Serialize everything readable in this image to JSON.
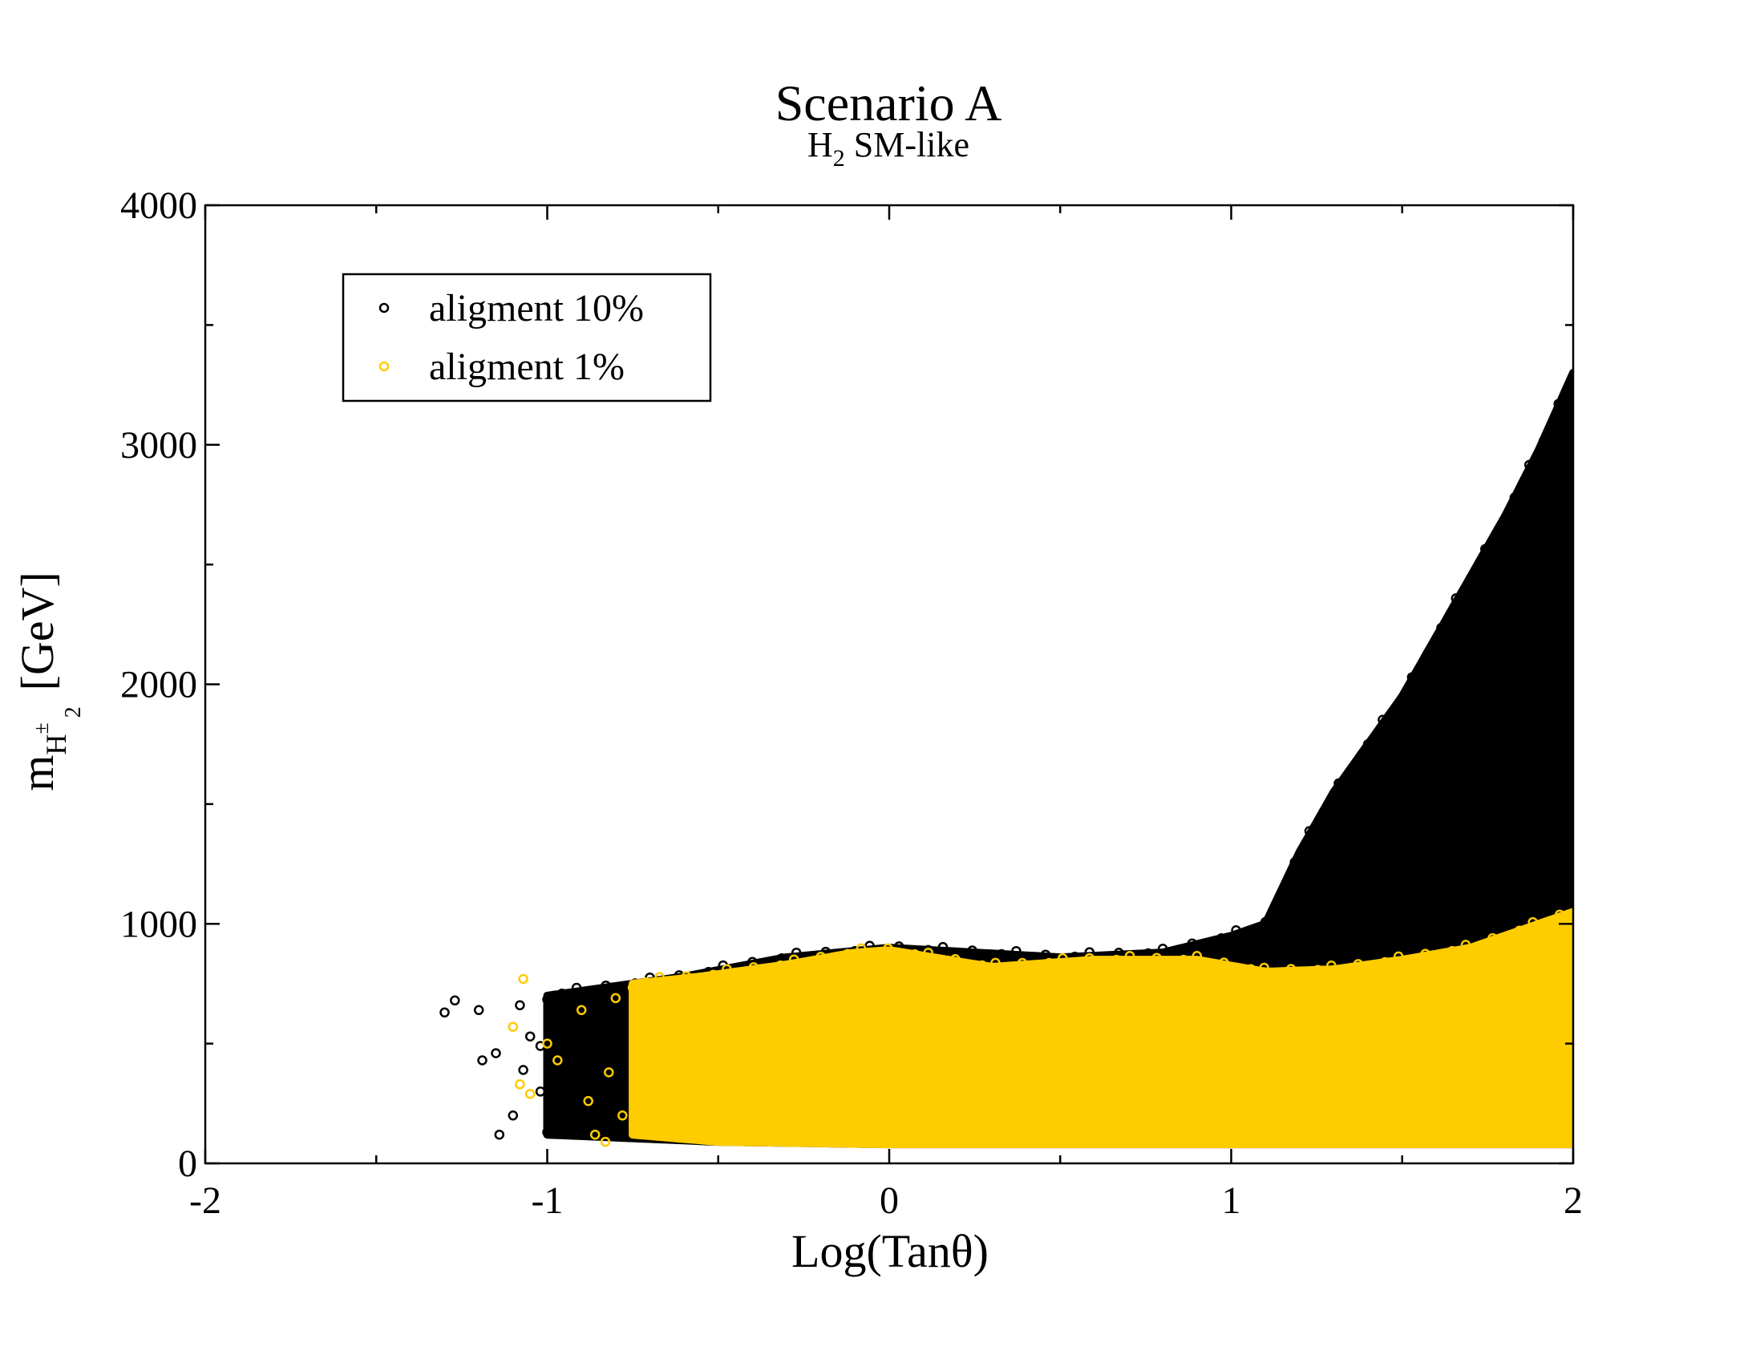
{
  "chart_data": {
    "type": "scatter",
    "title": "Scenario A",
    "subtitle": {
      "main": "H",
      "sub": "2",
      "rest": " SM-like"
    },
    "xlabel": "Log(Tanθ)",
    "ylabel": {
      "m": "m",
      "H": "H",
      "pm": "±",
      "two": "2",
      "unit": "[GeV]"
    },
    "xlim": [
      -2,
      2
    ],
    "ylim": [
      0,
      4000
    ],
    "x_ticks": [
      -2,
      -1,
      0,
      1,
      2
    ],
    "x_tick_labels": [
      "-2",
      "-1",
      "0",
      "1",
      "2"
    ],
    "y_ticks": [
      0,
      1000,
      2000,
      3000,
      4000
    ],
    "y_tick_labels": [
      "0",
      "1000",
      "2000",
      "3000",
      "4000"
    ],
    "grid": false,
    "legend": {
      "placement": "top-left"
    },
    "colors": {
      "black_series": "#000000",
      "yellow_series": "#ffcc00"
    },
    "series": [
      {
        "name": "aligment 10%",
        "color": "#000000",
        "marker": "open-circle",
        "region": {
          "x_range": [
            -1.0,
            2.0
          ],
          "lower_bound": [
            [
              -1.0,
              120
            ],
            [
              -0.5,
              90
            ],
            [
              0.0,
              80
            ],
            [
              1.0,
              80
            ],
            [
              2.0,
              80
            ]
          ],
          "upper_bound": [
            [
              -1.0,
              700
            ],
            [
              -0.6,
              780
            ],
            [
              -0.3,
              860
            ],
            [
              0.0,
              900
            ],
            [
              0.5,
              860
            ],
            [
              0.8,
              880
            ],
            [
              1.0,
              950
            ],
            [
              1.1,
              1000
            ],
            [
              1.2,
              1300
            ],
            [
              1.3,
              1550
            ],
            [
              1.4,
              1750
            ],
            [
              1.5,
              1950
            ],
            [
              1.6,
              2200
            ],
            [
              1.7,
              2450
            ],
            [
              1.8,
              2700
            ],
            [
              1.9,
              2980
            ],
            [
              2.0,
              3300
            ]
          ]
        },
        "sparse_points": [
          [
            -1.3,
            630
          ],
          [
            -1.27,
            680
          ],
          [
            -1.2,
            640
          ],
          [
            -1.19,
            430
          ],
          [
            -1.15,
            460
          ],
          [
            -1.14,
            120
          ],
          [
            -1.1,
            200
          ],
          [
            -1.08,
            660
          ],
          [
            -1.07,
            390
          ],
          [
            -1.05,
            530
          ],
          [
            -1.02,
            300
          ],
          [
            -1.02,
            490
          ],
          [
            -1.0,
            130
          ],
          [
            -0.99,
            590
          ],
          [
            -0.98,
            700
          ],
          [
            -0.96,
            150
          ],
          [
            -0.95,
            350
          ],
          [
            -0.93,
            480
          ],
          [
            -0.92,
            560
          ],
          [
            -0.9,
            260
          ]
        ]
      },
      {
        "name": "aligment 1%",
        "color": "#ffcc00",
        "marker": "open-circle",
        "region": {
          "x_range": [
            -0.75,
            2.0
          ],
          "lower_bound": [
            [
              -0.75,
              120
            ],
            [
              -0.5,
              90
            ],
            [
              0.0,
              80
            ],
            [
              1.0,
              80
            ],
            [
              2.0,
              80
            ]
          ],
          "upper_bound": [
            [
              -0.75,
              750
            ],
            [
              -0.55,
              780
            ],
            [
              -0.3,
              830
            ],
            [
              -0.1,
              880
            ],
            [
              0.0,
              890
            ],
            [
              0.3,
              820
            ],
            [
              0.6,
              850
            ],
            [
              0.9,
              850
            ],
            [
              1.1,
              800
            ],
            [
              1.3,
              810
            ],
            [
              1.5,
              850
            ],
            [
              1.7,
              900
            ],
            [
              1.8,
              950
            ],
            [
              1.9,
              1000
            ],
            [
              2.0,
              1050
            ]
          ]
        },
        "sparse_points": [
          [
            -1.07,
            770
          ],
          [
            -1.1,
            570
          ],
          [
            -1.08,
            330
          ],
          [
            -1.05,
            290
          ],
          [
            -1.0,
            500
          ],
          [
            -0.97,
            430
          ],
          [
            -0.9,
            640
          ],
          [
            -0.88,
            260
          ],
          [
            -0.86,
            120
          ],
          [
            -0.83,
            90
          ],
          [
            -0.82,
            380
          ],
          [
            -0.8,
            690
          ],
          [
            -0.78,
            200
          ]
        ]
      }
    ]
  }
}
